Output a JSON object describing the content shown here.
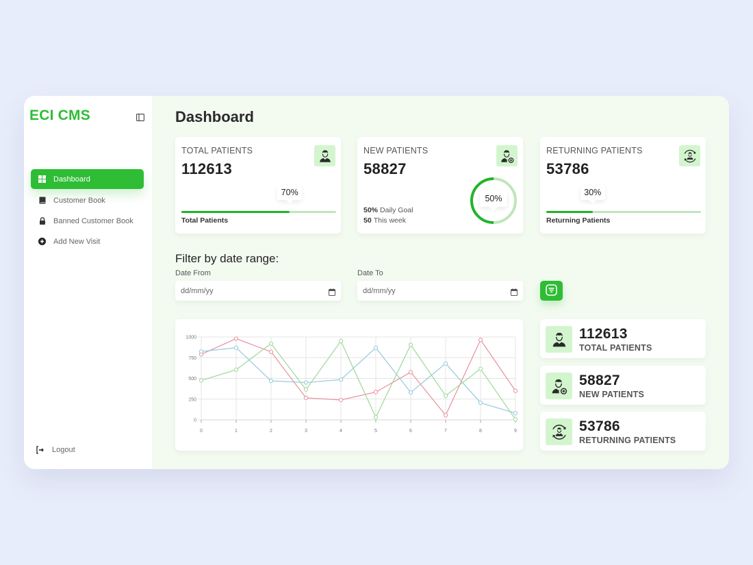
{
  "app": {
    "title": "ECI CMS"
  },
  "sidebar": {
    "items": [
      {
        "label": "Dashboard",
        "icon": "grid-icon",
        "active": true
      },
      {
        "label": "Customer Book",
        "icon": "book-icon",
        "active": false
      },
      {
        "label": "Banned Customer Book",
        "icon": "lock-icon",
        "active": false
      },
      {
        "label": "Add New Visit",
        "icon": "plus-circle-icon",
        "active": false
      }
    ],
    "logout_label": "Logout",
    "logout_icon": "logout-icon",
    "toggle_icon": "sidebar-toggle-icon"
  },
  "header": {
    "title": "Dashboard"
  },
  "summary_cards": [
    {
      "label": "TOTAL PATIENTS",
      "value": "112613",
      "icon": "user-icon",
      "progress": 70,
      "progress_label": "70%",
      "footer": "Total Patients"
    },
    {
      "label": "NEW PATIENTS",
      "value": "58827",
      "icon": "user-add-icon",
      "ring_percent": 50,
      "ring_label": "50%",
      "goal_value": "50%",
      "goal_text": "Daily Goal",
      "week_value": "50",
      "week_text": "This week"
    },
    {
      "label": "RETURNING PATIENTS",
      "value": "53786",
      "icon": "user-refresh-icon",
      "progress": 30,
      "progress_label": "30%",
      "footer": "Returning Patients"
    }
  ],
  "filter": {
    "title": "Filter by date range:",
    "date_from": {
      "label": "Date From",
      "placeholder": "dd/mm/yy",
      "value": ""
    },
    "date_to": {
      "label": "Date To",
      "placeholder": "dd/mm/yy",
      "value": ""
    },
    "button_icon": "filter-icon"
  },
  "stats": [
    {
      "value": "112613",
      "label": "TOTAL PATIENTS",
      "icon": "user-icon"
    },
    {
      "value": "58827",
      "label": "NEW PATIENTS",
      "icon": "user-add-icon"
    },
    {
      "value": "53786",
      "label": "RETURNING PATIENTS",
      "icon": "user-refresh-icon"
    }
  ],
  "colors": {
    "accent": "#2ebd34",
    "accent_light": "#d3f5ce",
    "page_bg": "#e8edfb",
    "main_bg": "#f3fbf1",
    "progress_track": "#bfe6bb"
  },
  "chart_data": {
    "type": "line",
    "title": "",
    "xlabel": "",
    "ylabel": "",
    "x": [
      0,
      1,
      2,
      3,
      4,
      5,
      6,
      7,
      8,
      9
    ],
    "yticks": [
      0,
      250,
      500,
      750,
      1000
    ],
    "ylim": [
      0,
      1000
    ],
    "grid": true,
    "legend": null,
    "series": [
      {
        "name": "",
        "color": "#e8909e",
        "values": [
          790,
          980,
          820,
          265,
          240,
          335,
          575,
          55,
          965,
          350
        ]
      },
      {
        "name": "",
        "color": "#93c9dc",
        "values": [
          825,
          870,
          470,
          450,
          485,
          870,
          330,
          680,
          205,
          80
        ]
      },
      {
        "name": "",
        "color": "#9ed79a",
        "values": [
          475,
          605,
          920,
          365,
          950,
          30,
          905,
          290,
          615,
          5
        ]
      }
    ]
  }
}
